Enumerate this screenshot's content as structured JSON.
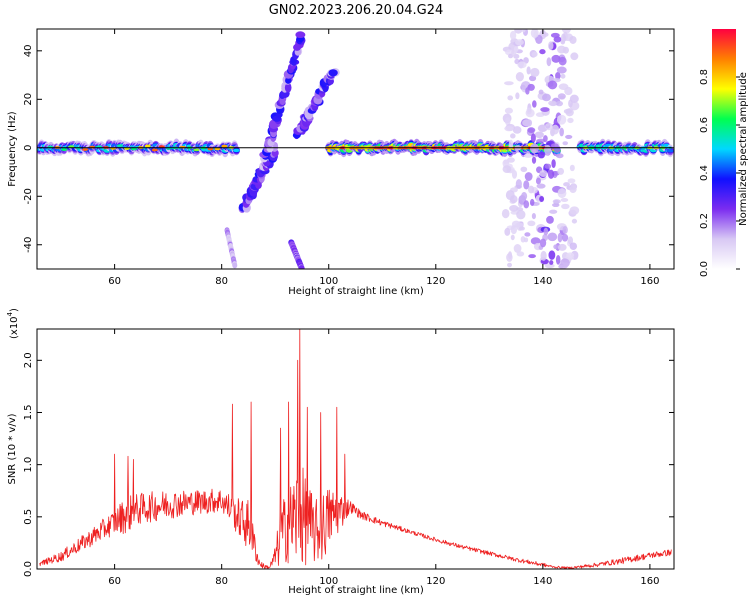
{
  "figure": {
    "title": "GN02.2023.206.20.04.G24"
  },
  "chart_data": [
    {
      "type": "heatmap",
      "xlabel": "Height of straight line (km)",
      "ylabel": "Frequency (Hz)",
      "xlim": [
        45.5,
        164.5
      ],
      "ylim": [
        -50,
        49
      ],
      "x_ticks": [
        60,
        80,
        100,
        120,
        140,
        160
      ],
      "y_ticks": [
        -40,
        -20,
        0,
        20,
        40
      ],
      "colorbar": {
        "label": "Normalized spectral amplitude",
        "range": [
          0,
          1
        ],
        "ticks": [
          "0.0",
          "0.2",
          "0.4",
          "0.6",
          "0.8"
        ],
        "colors": [
          "#ffffff",
          "#d8c8f4",
          "#7b2cf0",
          "#1010ff",
          "#00d8ff",
          "#00ff50",
          "#ffff00",
          "#ff8000",
          "#ff0040"
        ]
      },
      "carrier_line": {
        "frequency": 0,
        "x_range": [
          46,
          164
        ],
        "color": "#000000"
      },
      "segments": [
        {
          "x": [
            46,
            83
          ],
          "amplitude": 0.55
        },
        {
          "x": [
            100,
            143
          ],
          "amplitude": 0.85
        },
        {
          "x": [
            147,
            164
          ],
          "amplitude": 0.6
        }
      ],
      "features": [
        {
          "name": "descending-streak",
          "x": [
            84,
            90
          ],
          "y": [
            -25,
            0
          ]
        },
        {
          "name": "ascending-streak-a",
          "x": [
            88,
            95
          ],
          "y": [
            -5,
            47
          ]
        },
        {
          "name": "ascending-streak-b",
          "x": [
            94,
            101
          ],
          "y": [
            5,
            32
          ]
        },
        {
          "name": "scatter-column",
          "x": [
            133,
            146
          ],
          "y": [
            -50,
            49
          ]
        }
      ]
    },
    {
      "type": "line",
      "xlabel": "Height of straight line (km)",
      "ylabel": "SNR (10 * v/v)",
      "y_scale_label": "(x10",
      "y_scale_exp": "4",
      "y_scale_close": ")",
      "xlim": [
        45.5,
        164.5
      ],
      "ylim": [
        0,
        2.3
      ],
      "x_ticks": [
        60,
        80,
        100,
        120,
        140,
        160
      ],
      "y_ticks": [
        "0.0",
        "0.5",
        "1.0",
        "1.5",
        "2.0"
      ],
      "series": [
        {
          "color": "#ee2020",
          "x": [
            46,
            50,
            55,
            60,
            62,
            65,
            70,
            75,
            80,
            83,
            85,
            86,
            87,
            88,
            89,
            90,
            91,
            92,
            93,
            94,
            95,
            96,
            97,
            98,
            99,
            100,
            102,
            104,
            106,
            110,
            115,
            120,
            125,
            130,
            135,
            140,
            142,
            145,
            150,
            155,
            160,
            164
          ],
          "base": [
            0.05,
            0.12,
            0.28,
            0.45,
            0.52,
            0.58,
            0.62,
            0.64,
            0.66,
            0.5,
            0.42,
            0.25,
            0.06,
            0.02,
            0.02,
            0.12,
            0.3,
            0.4,
            0.45,
            0.5,
            0.5,
            0.45,
            0.38,
            0.35,
            0.4,
            0.5,
            0.55,
            0.6,
            0.52,
            0.44,
            0.36,
            0.28,
            0.21,
            0.15,
            0.09,
            0.04,
            0.02,
            0.01,
            0.04,
            0.08,
            0.13,
            0.16
          ],
          "noise": [
            0.02,
            0.05,
            0.08,
            0.12,
            0.18,
            0.15,
            0.14,
            0.12,
            0.12,
            0.18,
            0.25,
            0.15,
            0.05,
            0.02,
            0.02,
            0.1,
            0.3,
            0.35,
            0.4,
            0.5,
            0.5,
            0.4,
            0.35,
            0.3,
            0.35,
            0.3,
            0.2,
            0.06,
            0.04,
            0.03,
            0.02,
            0.02,
            0.02,
            0.02,
            0.02,
            0.02,
            0.01,
            0.01,
            0.02,
            0.03,
            0.03,
            0.03
          ]
        }
      ],
      "peaks": [
        {
          "x": 60,
          "y": 1.1
        },
        {
          "x": 62.5,
          "y": 1.08
        },
        {
          "x": 63.5,
          "y": 1.05
        },
        {
          "x": 82,
          "y": 1.58
        },
        {
          "x": 85.5,
          "y": 1.6
        },
        {
          "x": 91,
          "y": 1.35
        },
        {
          "x": 92.5,
          "y": 1.6
        },
        {
          "x": 94.2,
          "y": 2.0
        },
        {
          "x": 94.6,
          "y": 2.3
        },
        {
          "x": 96,
          "y": 1.55
        },
        {
          "x": 98.5,
          "y": 1.5
        },
        {
          "x": 101.5,
          "y": 1.55
        },
        {
          "x": 103,
          "y": 1.1
        }
      ]
    }
  ]
}
